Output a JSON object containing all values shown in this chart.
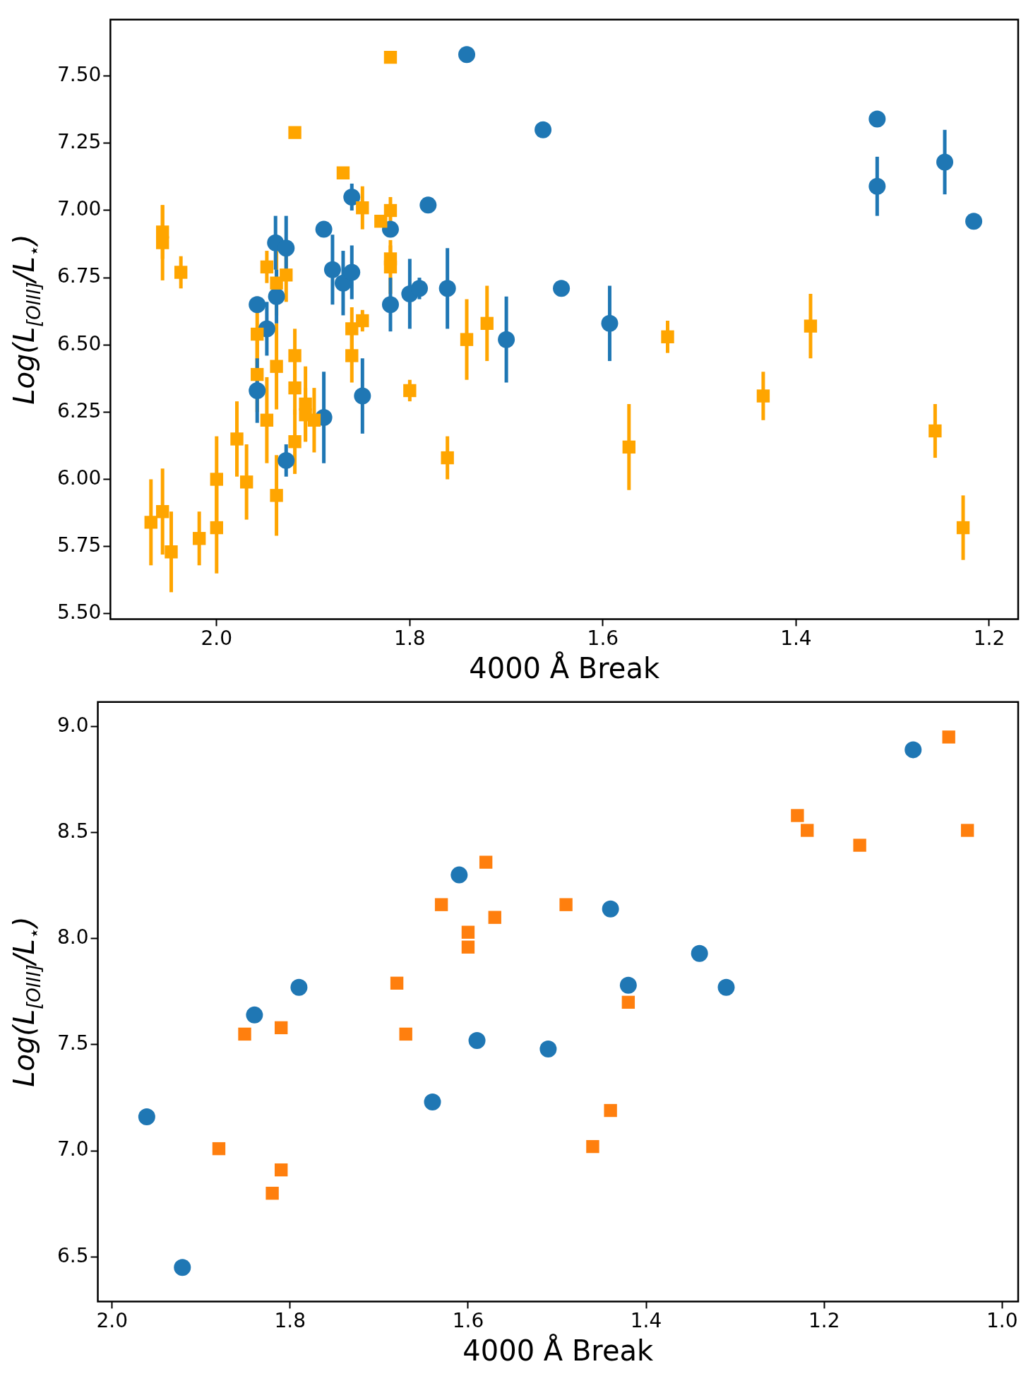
{
  "chart_data": [
    {
      "type": "scatter",
      "xlabel": "4000 Å Break",
      "ylabel": "Log(L$_{[OIII]}$/L$_{⋆}$)",
      "xlim": [
        2.11,
        1.17
      ],
      "ylim": [
        5.48,
        7.71
      ],
      "xticks": [
        {
          "value": 2.0,
          "label": "2.0"
        },
        {
          "value": 1.8,
          "label": "1.8"
        },
        {
          "value": 1.6,
          "label": "1.6"
        },
        {
          "value": 1.4,
          "label": "1.4"
        },
        {
          "value": 1.2,
          "label": "1.2"
        }
      ],
      "yticks": [
        {
          "value": 5.5,
          "label": "5.50"
        },
        {
          "value": 5.75,
          "label": "5.75"
        },
        {
          "value": 6.0,
          "label": "6.00"
        },
        {
          "value": 6.25,
          "label": "6.25"
        },
        {
          "value": 6.5,
          "label": "6.50"
        },
        {
          "value": 6.75,
          "label": "6.75"
        },
        {
          "value": 7.0,
          "label": "7.00"
        },
        {
          "value": 7.25,
          "label": "7.25"
        },
        {
          "value": 7.5,
          "label": "7.50"
        }
      ],
      "grid": false,
      "legend": false,
      "series": [
        {
          "color": "#ffa500",
          "marker": "square",
          "x": [
            1.82,
            1.919,
            1.869,
            1.849,
            1.83,
            1.82,
            2.056,
            2.056,
            2.037,
            1.948,
            1.938,
            1.928,
            1.82,
            1.82,
            1.849,
            1.86,
            1.958,
            1.86,
            1.919,
            1.938,
            1.958,
            1.8,
            1.919,
            1.908,
            1.908,
            1.899,
            1.948,
            1.919,
            1.979,
            1.969,
            2.0,
            1.938,
            2.068,
            2.056,
            2.047,
            2.018,
            2.0,
            1.741,
            1.72,
            1.761,
            1.573,
            1.533,
            1.434,
            1.385,
            1.256,
            1.227
          ],
          "values": [
            7.57,
            7.29,
            7.14,
            7.01,
            6.96,
            7.0,
            6.92,
            6.88,
            6.77,
            6.79,
            6.73,
            6.76,
            6.82,
            6.79,
            6.59,
            6.56,
            6.54,
            6.46,
            6.46,
            6.42,
            6.39,
            6.33,
            6.34,
            6.28,
            6.24,
            6.22,
            6.22,
            6.14,
            6.15,
            5.99,
            6.0,
            5.94,
            5.84,
            5.88,
            5.73,
            5.78,
            5.82,
            6.52,
            6.58,
            6.08,
            6.12,
            6.53,
            6.31,
            6.57,
            6.18,
            5.82
          ],
          "errors": [
            null,
            null,
            null,
            0.08,
            null,
            0.05,
            0.1,
            0.14,
            0.06,
            0.06,
            0.12,
            0.1,
            0.05,
            0.1,
            0.04,
            0.08,
            0.14,
            0.1,
            0.1,
            0.16,
            0.14,
            0.04,
            0.1,
            0.14,
            0.1,
            0.12,
            0.16,
            0.12,
            0.14,
            0.14,
            0.16,
            0.15,
            0.16,
            0.16,
            0.15,
            0.1,
            0.17,
            0.15,
            0.14,
            0.08,
            0.16,
            0.06,
            0.09,
            0.12,
            0.1,
            0.12
          ]
        },
        {
          "color": "#1f77b4",
          "marker": "circle",
          "x": [
            1.741,
            1.662,
            1.316,
            1.316,
            1.246,
            1.216,
            1.781,
            1.86,
            1.82,
            1.889,
            1.939,
            1.928,
            1.88,
            1.869,
            1.86,
            1.938,
            1.948,
            1.958,
            1.958,
            1.928,
            1.889,
            1.849,
            1.82,
            1.8,
            1.79,
            1.761,
            1.7,
            1.643,
            1.593
          ],
          "values": [
            7.58,
            7.3,
            7.34,
            7.09,
            7.18,
            6.96,
            7.02,
            7.05,
            6.93,
            6.93,
            6.88,
            6.86,
            6.78,
            6.73,
            6.77,
            6.68,
            6.56,
            6.65,
            6.33,
            6.07,
            6.23,
            6.31,
            6.65,
            6.69,
            6.71,
            6.71,
            6.52,
            6.71,
            6.58
          ],
          "errors": [
            null,
            null,
            null,
            0.11,
            0.12,
            null,
            null,
            0.05,
            null,
            0.02,
            0.1,
            0.12,
            0.13,
            0.12,
            0.1,
            0.1,
            0.1,
            null,
            0.12,
            0.06,
            0.17,
            0.14,
            0.1,
            0.13,
            0.04,
            0.15,
            0.16,
            0.02,
            0.14
          ]
        }
      ]
    },
    {
      "type": "scatter",
      "xlabel": "4000 Å Break",
      "ylabel": "Log(L$_{[OIII]}$/L$_{⋆}$)",
      "xlim": [
        2.016,
        0.982
      ],
      "ylim": [
        6.29,
        9.115
      ],
      "xticks": [
        {
          "value": 2.0,
          "label": "2.0"
        },
        {
          "value": 1.8,
          "label": "1.8"
        },
        {
          "value": 1.6,
          "label": "1.6"
        },
        {
          "value": 1.4,
          "label": "1.4"
        },
        {
          "value": 1.2,
          "label": "1.2"
        },
        {
          "value": 1.0,
          "label": "1.0"
        }
      ],
      "yticks": [
        {
          "value": 6.5,
          "label": "6.5"
        },
        {
          "value": 7.0,
          "label": "7.0"
        },
        {
          "value": 7.5,
          "label": "7.5"
        },
        {
          "value": 8.0,
          "label": "8.0"
        },
        {
          "value": 8.5,
          "label": "8.5"
        },
        {
          "value": 9.0,
          "label": "9.0"
        }
      ],
      "grid": false,
      "legend": false,
      "series": [
        {
          "color": "#ff7f0e",
          "marker": "square",
          "x": [
            1.88,
            1.851,
            1.82,
            1.81,
            1.81,
            1.68,
            1.67,
            1.63,
            1.6,
            1.6,
            1.58,
            1.57,
            1.49,
            1.46,
            1.44,
            1.42,
            1.23,
            1.219,
            1.16,
            1.06,
            1.039
          ],
          "values": [
            7.01,
            7.55,
            6.8,
            7.58,
            6.91,
            7.79,
            7.55,
            8.16,
            8.03,
            7.96,
            8.36,
            8.1,
            8.16,
            7.02,
            7.19,
            7.7,
            8.58,
            8.51,
            8.44,
            8.95,
            8.51
          ]
        },
        {
          "color": "#1f77b4",
          "marker": "circle",
          "x": [
            1.961,
            1.921,
            1.84,
            1.79,
            1.64,
            1.61,
            1.59,
            1.51,
            1.44,
            1.42,
            1.34,
            1.31,
            1.1
          ],
          "values": [
            7.16,
            6.45,
            7.64,
            7.77,
            7.23,
            8.3,
            7.52,
            7.48,
            8.14,
            7.78,
            7.93,
            7.77,
            8.89
          ]
        }
      ]
    }
  ]
}
